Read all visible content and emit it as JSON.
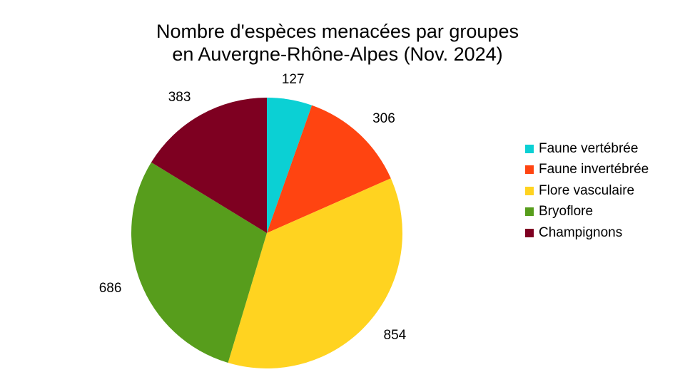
{
  "chart_data": {
    "type": "pie",
    "title_lines": [
      "Nombre d'espèces menacées par groupes",
      "en Auvergne-Rhône-Alpes (Nov. 2024)"
    ],
    "categories": [
      "Faune vertébrée",
      "Faune invertébrée",
      "Flore vasculaire",
      "Bryoflore",
      "Champignons"
    ],
    "values": [
      127,
      306,
      854,
      686,
      383
    ],
    "data_labels": [
      "127",
      "306",
      "854",
      "686",
      "383"
    ],
    "colors": [
      "#0BD0D4",
      "#FF4411",
      "#FFD320",
      "#579D1C",
      "#7E0021"
    ],
    "legend_position": "right",
    "start_angle": "12 o'clock, clockwise"
  }
}
